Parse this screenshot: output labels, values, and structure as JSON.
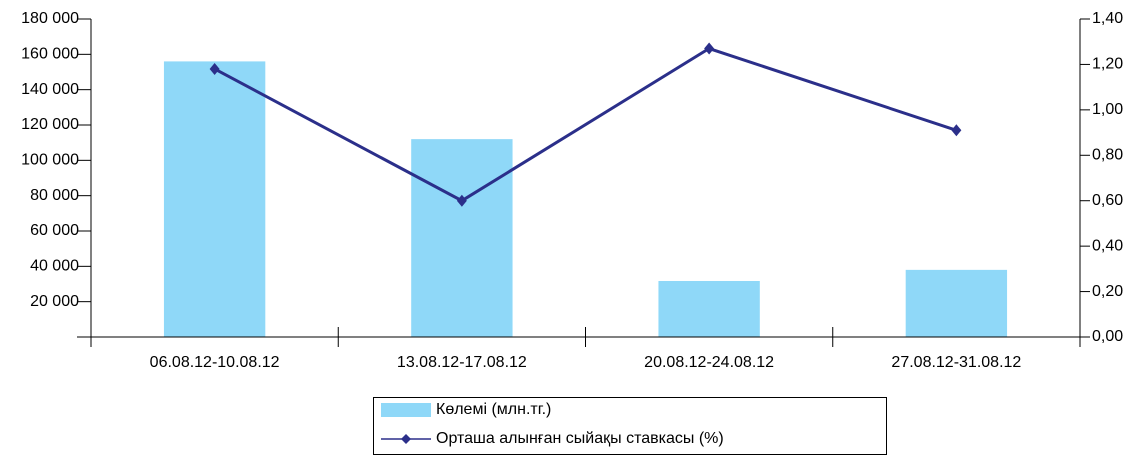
{
  "chart_data": {
    "type": "bar-line",
    "categories": [
      "06.08.12-10.08.12",
      "13.08.12-17.08.12",
      "20.08.12-24.08.12",
      "27.08.12-31.08.12"
    ],
    "series": [
      {
        "name": "Көлемі (млн.тг.)",
        "type": "bar",
        "color": "#8fd8f8",
        "values": [
          156000,
          112000,
          31700,
          38000
        ]
      },
      {
        "name": "Орташа алынған сыйақы ставкасы (%)",
        "type": "line",
        "color": "#2b2f8a",
        "axis": "y2",
        "values": [
          1.18,
          0.6,
          1.27,
          0.91
        ]
      }
    ],
    "ylim": [
      0,
      180000
    ],
    "yticks": [
      {
        "value": 20000,
        "label": "20 000"
      },
      {
        "value": 40000,
        "label": "40 000"
      },
      {
        "value": 60000,
        "label": "60 000"
      },
      {
        "value": 80000,
        "label": "80 000"
      },
      {
        "value": 100000,
        "label": "100 000"
      },
      {
        "value": 120000,
        "label": "120 000"
      },
      {
        "value": 140000,
        "label": "140 000"
      },
      {
        "value": 160000,
        "label": "160 000"
      },
      {
        "value": 180000,
        "label": "180 000"
      }
    ],
    "y2lim": [
      0,
      1.4
    ],
    "y2ticks": [
      {
        "value": 0,
        "label": "0,00"
      },
      {
        "value": 0.2,
        "label": "0,20"
      },
      {
        "value": 0.4,
        "label": "0,40"
      },
      {
        "value": 0.6,
        "label": "0,60"
      },
      {
        "value": 0.8,
        "label": "0,80"
      },
      {
        "value": 1.0,
        "label": "1,00"
      },
      {
        "value": 1.2,
        "label": "1,20"
      },
      {
        "value": 1.4,
        "label": "1,40"
      }
    ],
    "legend": "bottom"
  }
}
